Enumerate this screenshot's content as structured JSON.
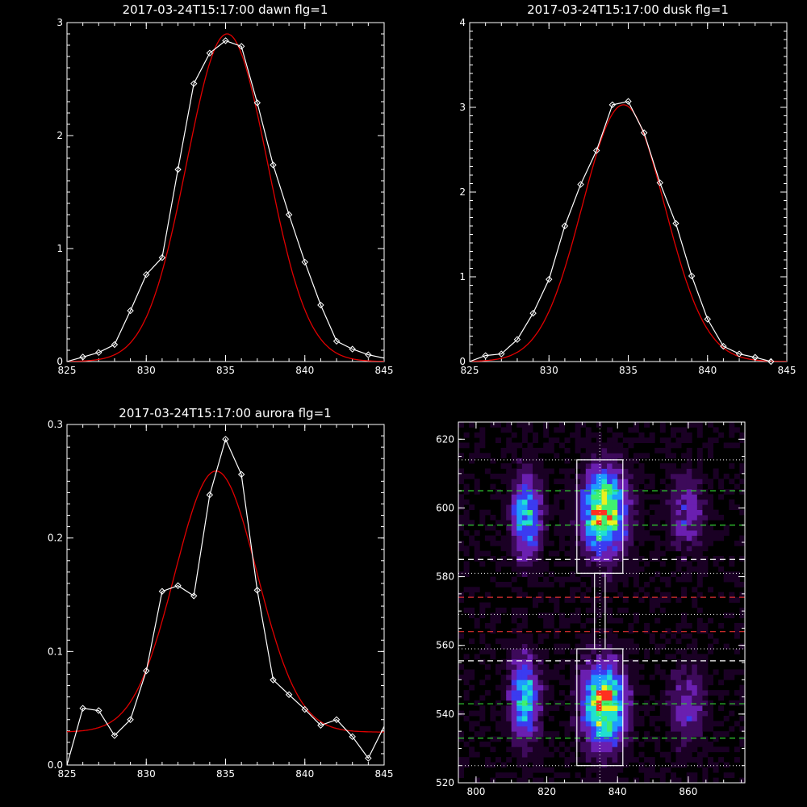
{
  "colors": {
    "background": "#000000",
    "axes": "#ffffff",
    "observed": "#ffffff",
    "fit": "#e00000",
    "heatmap_scale": [
      "#1a0024",
      "#3d0a5a",
      "#6a1fb0",
      "#3b3bf0",
      "#1e9bff",
      "#20e0d0",
      "#40f070",
      "#e8f020",
      "#ff3020"
    ]
  },
  "chart_data": [
    {
      "type": "line",
      "title": "2017-03-24T15:17:00 dawn flg=1",
      "xlim": [
        825,
        845
      ],
      "ylim": [
        0,
        3
      ],
      "xticks": [
        825,
        830,
        835,
        840,
        845
      ],
      "yticks": [
        0,
        1,
        2,
        3
      ],
      "series": [
        {
          "marker": "diamond",
          "x": [
            825,
            826,
            827,
            828,
            829,
            830,
            831,
            832,
            833,
            834,
            835,
            836,
            837,
            838,
            839,
            840,
            841,
            842,
            843,
            844,
            845
          ],
          "values": [
            0.0,
            0.04,
            0.08,
            0.15,
            0.45,
            0.77,
            0.92,
            1.7,
            2.46,
            2.73,
            2.84,
            2.79,
            2.29,
            1.74,
            1.3,
            0.88,
            0.5,
            0.18,
            0.11,
            0.06,
            0.03
          ]
        },
        {
          "curve": "gaussian",
          "amplitude": 2.9,
          "center": 835.1,
          "sigma": 2.55,
          "offset": 0.0
        }
      ]
    },
    {
      "type": "line",
      "title": "2017-03-24T15:17:00 dusk flg=1",
      "xlim": [
        825,
        845
      ],
      "ylim": [
        0,
        4
      ],
      "xticks": [
        825,
        830,
        835,
        840,
        845
      ],
      "yticks": [
        0,
        1,
        2,
        3,
        4
      ],
      "series": [
        {
          "marker": "diamond",
          "x": [
            825,
            826,
            827,
            828,
            829,
            830,
            831,
            832,
            833,
            834,
            835,
            836,
            837,
            838,
            839,
            840,
            841,
            842,
            843,
            844
          ],
          "values": [
            0.0,
            0.07,
            0.09,
            0.26,
            0.57,
            0.97,
            1.6,
            2.09,
            2.49,
            3.03,
            3.07,
            2.7,
            2.11,
            1.63,
            1.01,
            0.5,
            0.18,
            0.09,
            0.05,
            0.0
          ]
        },
        {
          "curve": "gaussian",
          "amplitude": 3.03,
          "center": 834.7,
          "sigma": 2.6,
          "offset": 0.0
        }
      ]
    },
    {
      "type": "line",
      "title": "2017-03-24T15:17:00 aurora flg=1",
      "xlim": [
        825,
        845
      ],
      "ylim": [
        0,
        0.3
      ],
      "xticks": [
        825,
        830,
        835,
        840,
        845
      ],
      "yticks": [
        0.0,
        0.1,
        0.2,
        0.3
      ],
      "ytick_labels": [
        "0.0",
        "0.1",
        "0.2",
        "0.3"
      ],
      "series": [
        {
          "marker": "diamond",
          "x": [
            825,
            826,
            827,
            828,
            829,
            830,
            831,
            832,
            833,
            834,
            835,
            836,
            837,
            838,
            839,
            840,
            841,
            842,
            843,
            844,
            845
          ],
          "values": [
            0.0,
            0.05,
            0.048,
            0.026,
            0.04,
            0.083,
            0.153,
            0.158,
            0.149,
            0.238,
            0.287,
            0.256,
            0.154,
            0.075,
            0.062,
            0.049,
            0.035,
            0.04,
            0.025,
            0.006,
            0.034
          ]
        },
        {
          "curve": "gaussian",
          "amplitude": 0.23,
          "center": 834.4,
          "sigma": 2.6,
          "offset": 0.029
        }
      ]
    },
    {
      "type": "heatmap",
      "xlim": [
        795,
        876
      ],
      "ylim": [
        520,
        625
      ],
      "xticks": [
        800,
        820,
        840,
        860
      ],
      "yticks": [
        520,
        540,
        560,
        580,
        600,
        620
      ],
      "blobs": [
        {
          "x": 835.5,
          "y": 598,
          "sx": 4.0,
          "sy": 8.0,
          "amp": 1.0
        },
        {
          "x": 835.5,
          "y": 542,
          "sx": 4.0,
          "sy": 8.0,
          "amp": 0.95
        },
        {
          "x": 813.5,
          "y": 597,
          "sx": 2.8,
          "sy": 8.0,
          "amp": 0.62
        },
        {
          "x": 813.0,
          "y": 544,
          "sx": 2.8,
          "sy": 8.0,
          "amp": 0.62
        },
        {
          "x": 859.0,
          "y": 598,
          "sx": 3.5,
          "sy": 7.5,
          "amp": 0.28
        },
        {
          "x": 859.0,
          "y": 542,
          "sx": 3.5,
          "sy": 7.5,
          "amp": 0.28
        }
      ],
      "vertical_dotted_line": 835,
      "boxes": [
        {
          "x0": 828.5,
          "x1": 841.5,
          "y0": 581,
          "y1": 614,
          "color": "#ffffff"
        },
        {
          "x0": 828.5,
          "x1": 841.5,
          "y0": 525,
          "y1": 559,
          "color": "#ffffff"
        },
        {
          "x0": 833.5,
          "x1": 836.5,
          "y0": 559,
          "y1": 581,
          "color": "#ffffff"
        }
      ],
      "dotted_hlines": [
        614,
        581,
        569,
        559,
        525
      ],
      "dashed_hlines": [
        {
          "y": 605,
          "color": "#30d030"
        },
        {
          "y": 595,
          "color": "#30d030"
        },
        {
          "y": 585,
          "color": "#ffffff"
        },
        {
          "y": 574,
          "color": "#e03030"
        },
        {
          "y": 564,
          "color": "#e03030"
        },
        {
          "y": 555.5,
          "color": "#ffffff"
        },
        {
          "y": 543,
          "color": "#30d030"
        },
        {
          "y": 533,
          "color": "#30d030"
        }
      ]
    }
  ]
}
